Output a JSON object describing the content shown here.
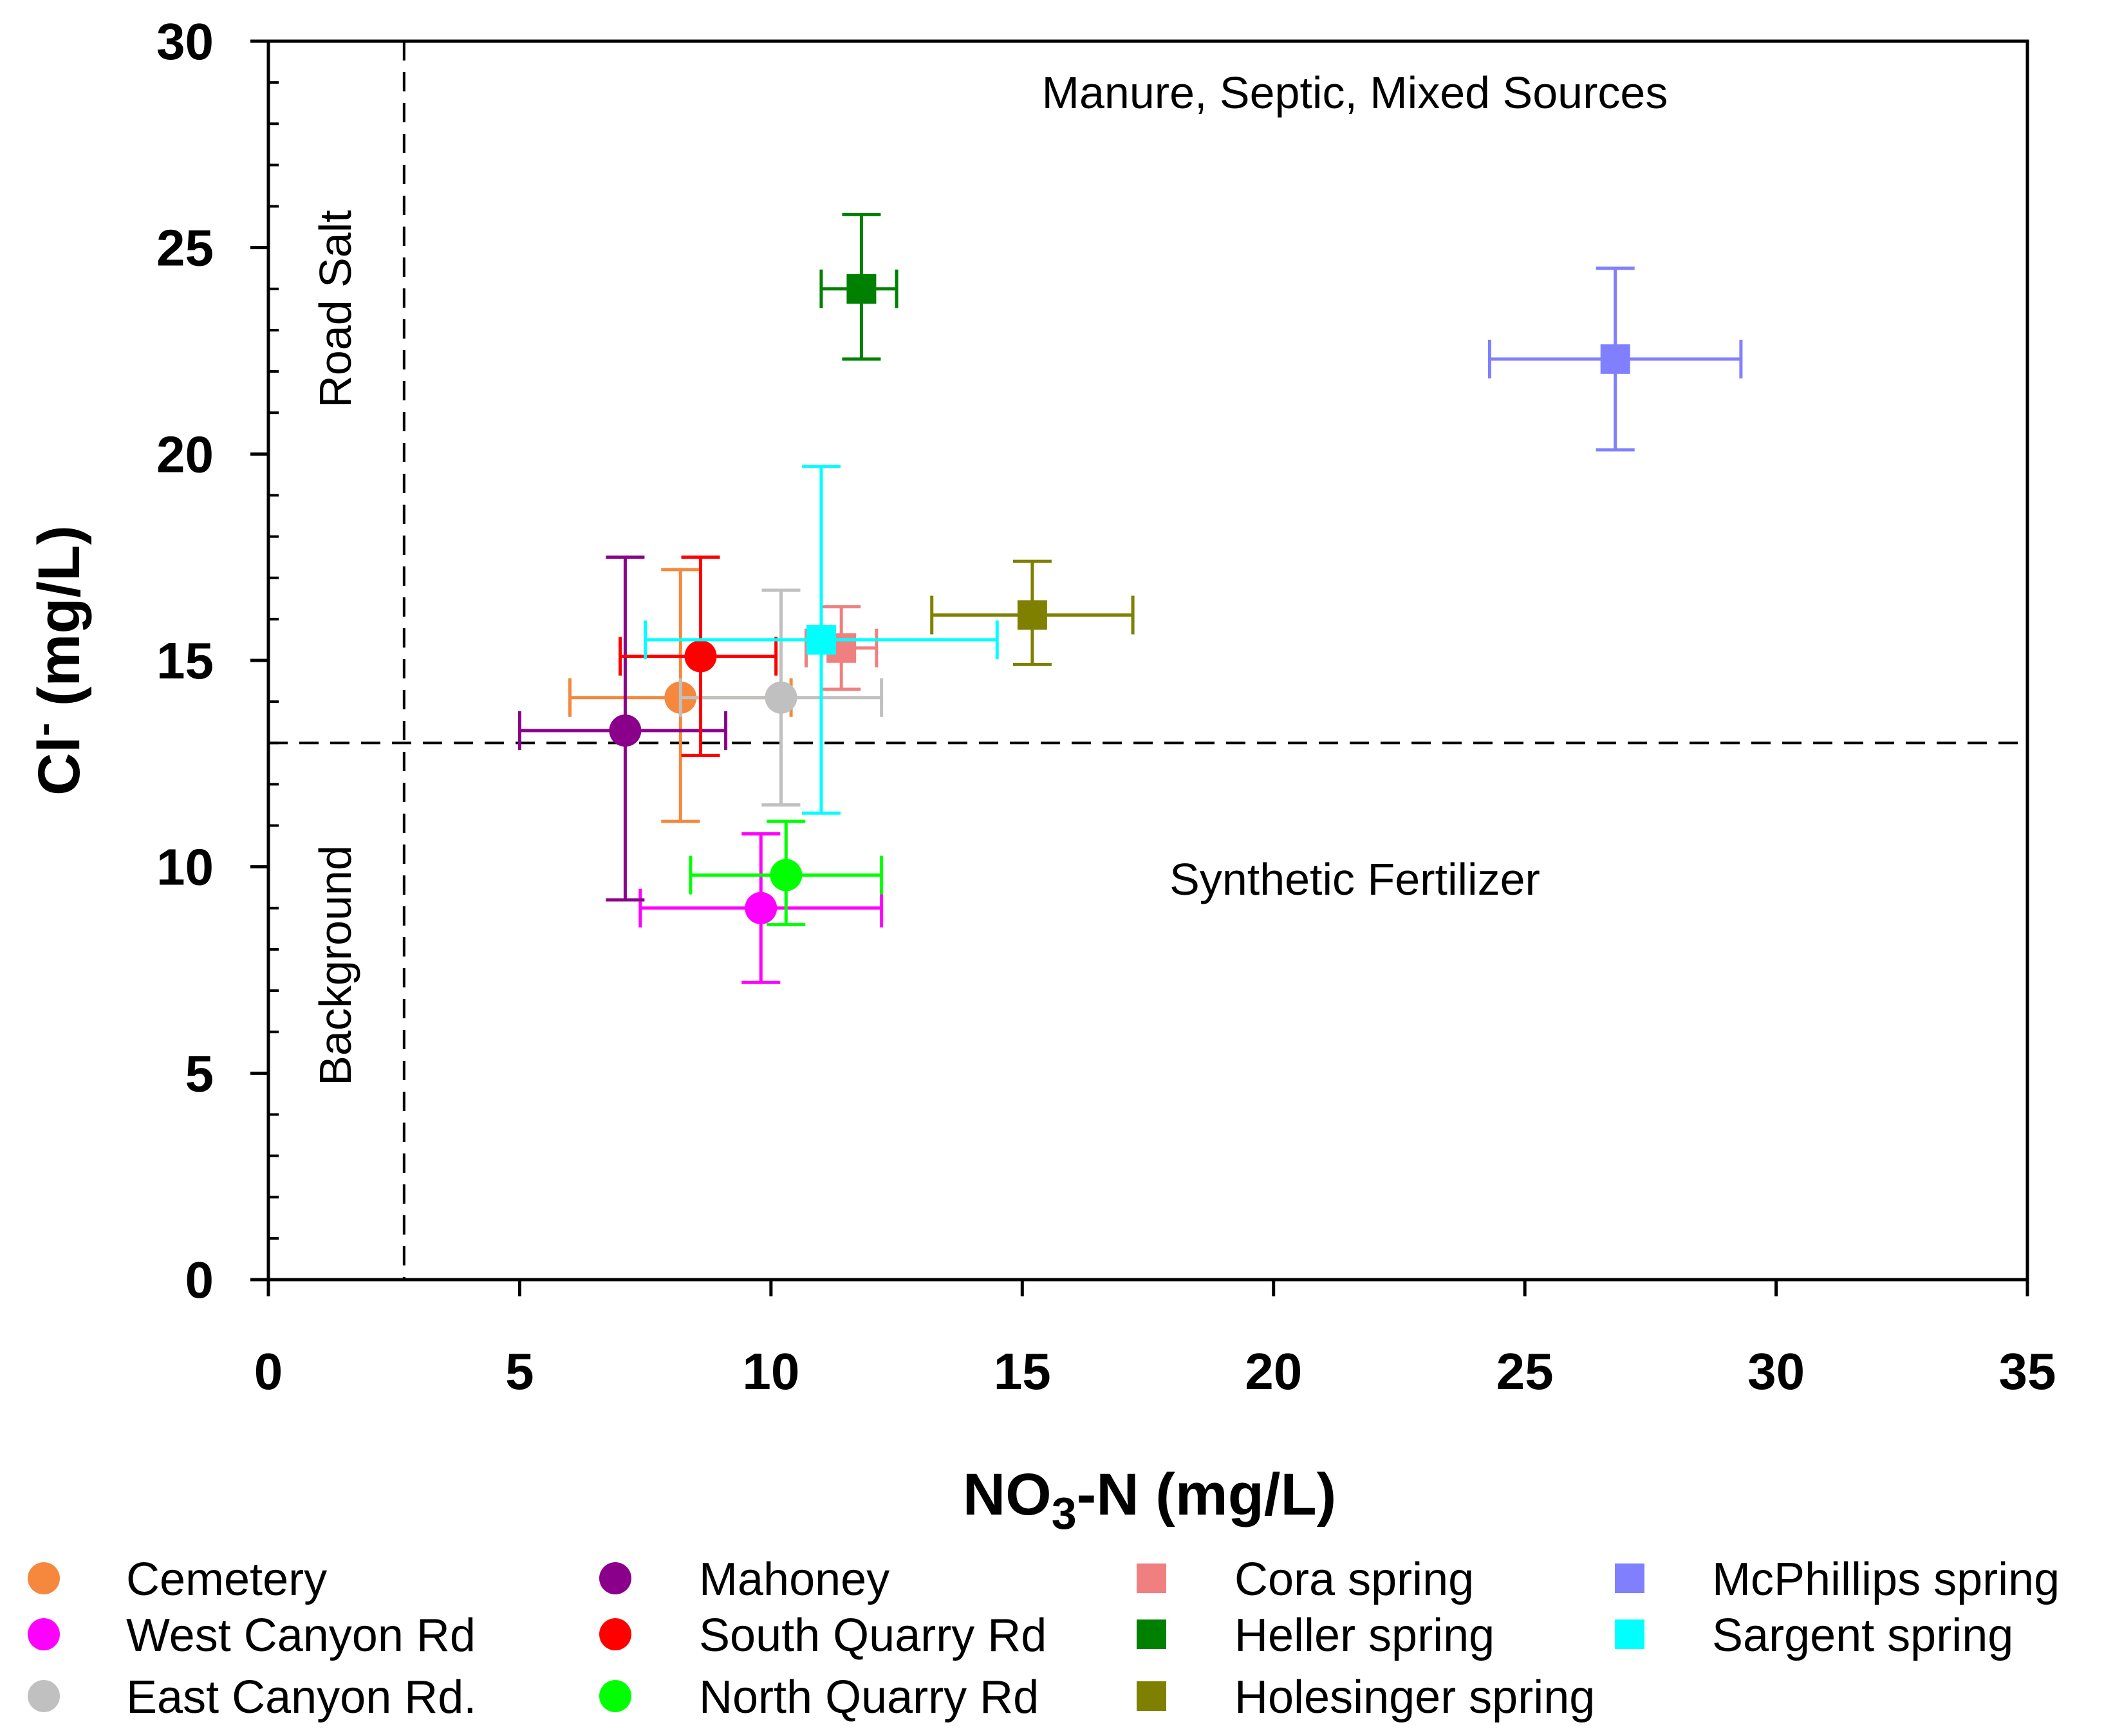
{
  "chart_data": {
    "type": "scatter",
    "title": "",
    "xlabel": "NO3-N (mg/L)",
    "xlabel_main": "NO",
    "xlabel_sub": "3",
    "xlabel_rest": "-N (mg/L)",
    "ylabel_main": "Cl",
    "ylabel_sup": "-",
    "ylabel_rest": " (mg/L)",
    "xlim": [
      0,
      35
    ],
    "ylim": [
      0,
      30
    ],
    "x_ticks": [
      "0",
      "5",
      "10",
      "15",
      "20",
      "25",
      "30",
      "35"
    ],
    "y_ticks": [
      "0",
      "5",
      "10",
      "15",
      "20",
      "25",
      "30"
    ],
    "reference_lines": {
      "x": 2.7,
      "y": 13.0
    },
    "regions": {
      "road_salt": "Road Salt",
      "background": "Background",
      "manure": "Manure, Septic, Mixed Sources",
      "synthetic": "Synthetic Fertilizer"
    },
    "series": [
      {
        "name": "Cemetery",
        "marker": "circle",
        "color": "#F5883D",
        "x": 8.2,
        "y": 14.1,
        "xerr": [
          6.0,
          10.4
        ],
        "yerr": [
          11.1,
          17.2
        ]
      },
      {
        "name": "West Canyon Rd",
        "marker": "circle",
        "color": "#FF00FF",
        "x": 9.8,
        "y": 9.0,
        "xerr": [
          7.4,
          12.2
        ],
        "yerr": [
          7.2,
          10.8
        ]
      },
      {
        "name": "East Canyon Rd.",
        "marker": "circle",
        "color": "#C0C0C0",
        "x": 10.2,
        "y": 14.1,
        "xerr": [
          8.2,
          12.2
        ],
        "yerr": [
          11.5,
          16.7
        ]
      },
      {
        "name": "Mahoney",
        "marker": "circle",
        "color": "#8B008B",
        "x": 7.1,
        "y": 13.3,
        "xerr": [
          5.0,
          9.1
        ],
        "yerr": [
          9.2,
          17.5
        ]
      },
      {
        "name": "South Quarry Rd",
        "marker": "circle",
        "color": "#FF0000",
        "x": 8.6,
        "y": 15.1,
        "xerr": [
          7.0,
          10.1
        ],
        "yerr": [
          12.7,
          17.5
        ]
      },
      {
        "name": "North Quarry Rd",
        "marker": "circle",
        "color": "#00FF00",
        "x": 10.3,
        "y": 9.8,
        "xerr": [
          8.4,
          12.2
        ],
        "yerr": [
          8.6,
          11.1
        ]
      },
      {
        "name": "Cora spring",
        "marker": "square",
        "color": "#F08080",
        "x": 11.4,
        "y": 15.3,
        "xerr": [
          10.7,
          12.1
        ],
        "yerr": [
          14.3,
          16.3
        ]
      },
      {
        "name": "Heller spring",
        "marker": "square",
        "color": "#008000",
        "x": 11.8,
        "y": 24.0,
        "xerr": [
          11.0,
          12.5
        ],
        "yerr": [
          22.3,
          25.8
        ]
      },
      {
        "name": "Holesinger spring",
        "marker": "square",
        "color": "#808000",
        "x": 15.2,
        "y": 16.1,
        "xerr": [
          13.2,
          17.2
        ],
        "yerr": [
          14.9,
          17.4
        ]
      },
      {
        "name": "McPhillips spring",
        "marker": "square",
        "color": "#8080FF",
        "x": 26.8,
        "y": 22.3,
        "xerr": [
          24.3,
          29.3
        ],
        "yerr": [
          20.1,
          24.5
        ]
      },
      {
        "name": "Sargent spring",
        "marker": "square",
        "color": "#00FFFF",
        "x": 11.0,
        "y": 15.5,
        "xerr": [
          7.5,
          14.5
        ],
        "yerr": [
          11.3,
          19.7
        ]
      }
    ]
  }
}
